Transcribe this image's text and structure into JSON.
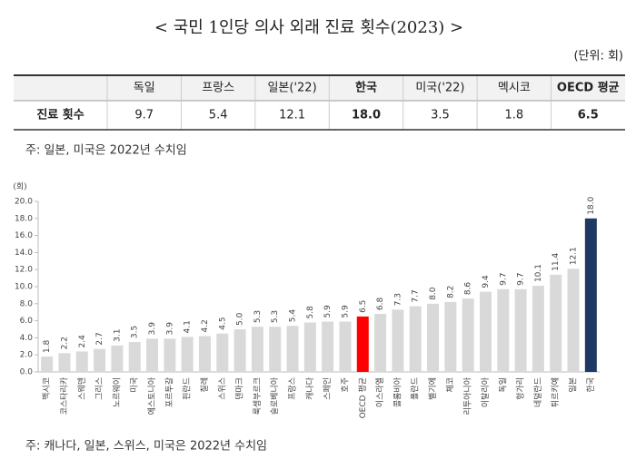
{
  "header": {
    "title": "< 국민 1인당 의사 외래 진료 횟수(2023) >",
    "unit": "(단위: 회)"
  },
  "table": {
    "columns": [
      "독일",
      "프랑스",
      "일본('22)",
      "한국",
      "미국('22)",
      "멕시코",
      "OECD 평균"
    ],
    "rows": [
      [
        "진료 횟수",
        "9.7",
        "5.4",
        "12.1",
        "18.0",
        "3.5",
        "1.8",
        "6.5"
      ]
    ]
  },
  "table_note": "주: 일본, 미국은 2022년 수치임",
  "chart_data": {
    "type": "bar",
    "y_label": "(회)",
    "categories": [
      "멕시코",
      "코스타리카",
      "스웨덴",
      "그리스",
      "노르웨이",
      "미국",
      "에스토니아",
      "포르투갈",
      "핀란드",
      "칠레",
      "스위스",
      "덴마크",
      "룩셈부르크",
      "슬로베니아",
      "프랑스",
      "캐나다",
      "스페인",
      "호주",
      "OECD 평균",
      "이스라엘",
      "콜롬비아",
      "폴란드",
      "벨기에",
      "체코",
      "리투아니아",
      "이탈리아",
      "독일",
      "헝가리",
      "네덜란드",
      "튀르키예",
      "일본",
      "한국"
    ],
    "values": [
      1.8,
      2.2,
      2.4,
      2.7,
      3.1,
      3.5,
      3.9,
      3.9,
      4.1,
      4.2,
      4.5,
      5.0,
      5.3,
      5.3,
      5.4,
      5.8,
      5.9,
      5.9,
      6.5,
      6.8,
      7.3,
      7.7,
      8.0,
      8.2,
      8.6,
      9.4,
      9.7,
      9.7,
      10.1,
      11.4,
      12.1,
      18.0
    ],
    "value_labels": [
      "1.8",
      "2.2",
      "2.4",
      "2.7",
      "3.1",
      "3.5",
      "3.9",
      "3.9",
      "4.1",
      "4.2",
      "4.5",
      "5.0",
      "5.3",
      "5.3",
      "5.4",
      "5.8",
      "5.9",
      "5.9",
      "6.5",
      "6.8",
      "7.3",
      "7.7",
      "8.0",
      "8.2",
      "8.6",
      "9.4",
      "9.7",
      "9.7",
      "10.1",
      "11.4",
      "12.1",
      "18.0"
    ],
    "colors": [
      "#d9d9d9",
      "#d9d9d9",
      "#d9d9d9",
      "#d9d9d9",
      "#d9d9d9",
      "#d9d9d9",
      "#d9d9d9",
      "#d9d9d9",
      "#d9d9d9",
      "#d9d9d9",
      "#d9d9d9",
      "#d9d9d9",
      "#d9d9d9",
      "#d9d9d9",
      "#d9d9d9",
      "#d9d9d9",
      "#d9d9d9",
      "#d9d9d9",
      "#ff0000",
      "#d9d9d9",
      "#d9d9d9",
      "#d9d9d9",
      "#d9d9d9",
      "#d9d9d9",
      "#d9d9d9",
      "#d9d9d9",
      "#d9d9d9",
      "#d9d9d9",
      "#d9d9d9",
      "#d9d9d9",
      "#d9d9d9",
      "#1f3864"
    ],
    "ylim": [
      0,
      20
    ],
    "yticks": [
      {
        "value": 0,
        "label": "0.0"
      },
      {
        "value": 2,
        "label": "2.0"
      },
      {
        "value": 4,
        "label": "4.0"
      },
      {
        "value": 6,
        "label": "6.0"
      },
      {
        "value": 8,
        "label": "8.0"
      },
      {
        "value": 10,
        "label": "10.0"
      },
      {
        "value": 12,
        "label": "12.0"
      },
      {
        "value": 14,
        "label": "14.0"
      },
      {
        "value": 16,
        "label": "16.0"
      },
      {
        "value": 18,
        "label": "18.0"
      },
      {
        "value": 20,
        "label": "20.0"
      }
    ],
    "note": "주: 캐나다, 일본, 스위스, 미국은 2022년 수치임"
  }
}
